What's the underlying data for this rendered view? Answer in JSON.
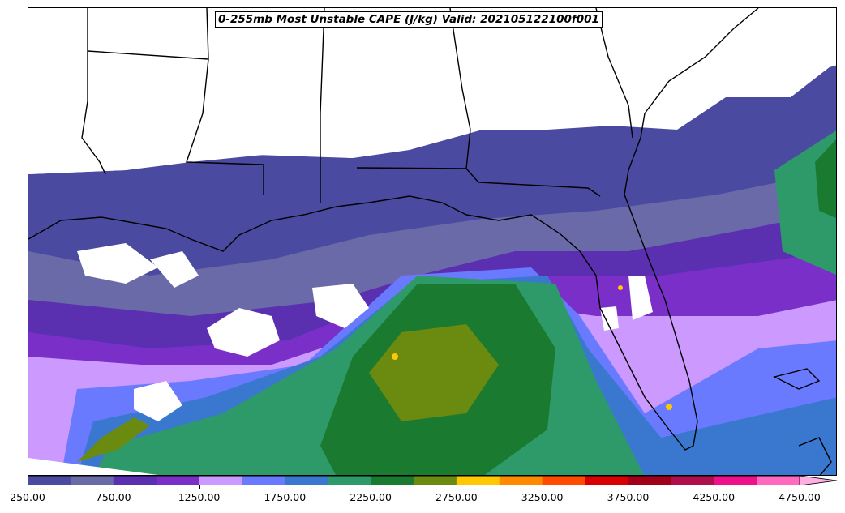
{
  "title": "0-255mb Most Unstable CAPE (J/kg) Valid: 202105122100f001",
  "colorbar": {
    "colors": [
      "#4a4aa0",
      "#6a6aa8",
      "#5a2fb0",
      "#7a30c8",
      "#cc99ff",
      "#6a7aff",
      "#3a78d0",
      "#2e9a6a",
      "#1a7a30",
      "#6a8a10",
      "#ffc800",
      "#ff8a00",
      "#ff4a00",
      "#d80000",
      "#a00018",
      "#b0104a",
      "#f0108a",
      "#ff6ac0"
    ],
    "tick_labels": [
      "250.00",
      "750.00",
      "1250.00",
      "1750.00",
      "2250.00",
      "2750.00",
      "3250.00",
      "3750.00",
      "4250.00",
      "4750.00"
    ],
    "extend_color": "#ffb0e0"
  }
}
